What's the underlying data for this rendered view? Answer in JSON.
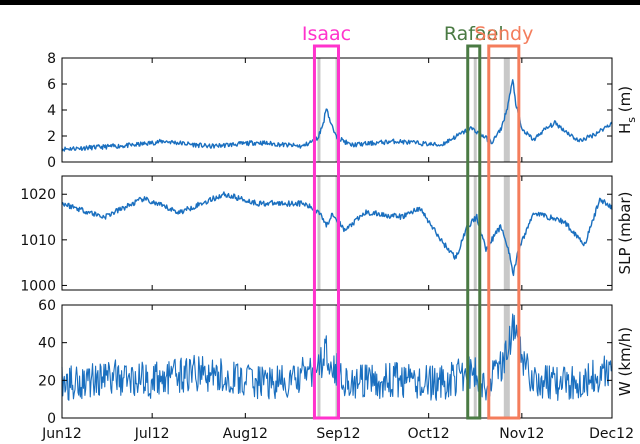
{
  "chart_data": {
    "type": "line",
    "x_axis": {
      "ticks": [
        "Jun12",
        "Jul12",
        "Aug12",
        "Sep12",
        "Oct12",
        "Nov12",
        "Dec12"
      ],
      "start": "2012-06-01",
      "end": "2012-12-01"
    },
    "panels": [
      {
        "ylabel_main": "H",
        "ylabel_sub": "s",
        "ylabel_unit": " (m)",
        "ylim": [
          0,
          8
        ],
        "yticks": [
          "0",
          "2",
          "4",
          "6",
          "8"
        ],
        "anchors": [
          [
            "2012-06-01",
            1.0
          ],
          [
            "2012-06-10",
            1.1
          ],
          [
            "2012-06-25",
            1.3
          ],
          [
            "2012-07-05",
            1.6
          ],
          [
            "2012-07-20",
            1.2
          ],
          [
            "2012-08-05",
            1.5
          ],
          [
            "2012-08-20",
            1.2
          ],
          [
            "2012-08-25",
            1.8
          ],
          [
            "2012-08-27",
            3.0
          ],
          [
            "2012-08-28",
            4.3
          ],
          [
            "2012-08-29",
            3.3
          ],
          [
            "2012-08-31",
            2.0
          ],
          [
            "2012-09-05",
            1.3
          ],
          [
            "2012-09-20",
            1.6
          ],
          [
            "2012-10-05",
            1.3
          ],
          [
            "2012-10-15",
            2.6
          ],
          [
            "2012-10-18",
            2.2
          ],
          [
            "2012-10-22",
            1.5
          ],
          [
            "2012-10-25",
            2.5
          ],
          [
            "2012-10-27",
            4.0
          ],
          [
            "2012-10-29",
            6.3
          ],
          [
            "2012-10-30",
            4.5
          ],
          [
            "2012-11-01",
            2.5
          ],
          [
            "2012-11-05",
            1.7
          ],
          [
            "2012-11-08",
            2.4
          ],
          [
            "2012-11-12",
            3.0
          ],
          [
            "2012-11-20",
            1.6
          ],
          [
            "2012-11-25",
            2.1
          ],
          [
            "2012-12-01",
            3.0
          ]
        ]
      },
      {
        "ylabel_main": "SLP (mbar)",
        "ylim": [
          999,
          1024
        ],
        "yticks": [
          "1000",
          "1010",
          "1020"
        ],
        "anchors": [
          [
            "2012-06-01",
            1018
          ],
          [
            "2012-06-15",
            1015
          ],
          [
            "2012-06-28",
            1019
          ],
          [
            "2012-07-10",
            1016
          ],
          [
            "2012-07-25",
            1020
          ],
          [
            "2012-08-05",
            1018
          ],
          [
            "2012-08-20",
            1018
          ],
          [
            "2012-08-26",
            1016
          ],
          [
            "2012-08-28",
            1013
          ],
          [
            "2012-08-30",
            1016
          ],
          [
            "2012-09-03",
            1012
          ],
          [
            "2012-09-10",
            1016
          ],
          [
            "2012-09-22",
            1015
          ],
          [
            "2012-09-28",
            1017
          ],
          [
            "2012-10-05",
            1010
          ],
          [
            "2012-10-10",
            1006
          ],
          [
            "2012-10-14",
            1013
          ],
          [
            "2012-10-17",
            1015
          ],
          [
            "2012-10-20",
            1008
          ],
          [
            "2012-10-25",
            1013
          ],
          [
            "2012-10-28",
            1007
          ],
          [
            "2012-10-29",
            1002
          ],
          [
            "2012-10-31",
            1008
          ],
          [
            "2012-11-05",
            1016
          ],
          [
            "2012-11-15",
            1014
          ],
          [
            "2012-11-22",
            1009
          ],
          [
            "2012-11-27",
            1019
          ],
          [
            "2012-12-01",
            1017
          ]
        ]
      },
      {
        "ylabel_main": "W (km/h)",
        "ylim": [
          0,
          60
        ],
        "yticks": [
          "0",
          "20",
          "40",
          "60"
        ],
        "anchors": [
          [
            "2012-06-01",
            18
          ],
          [
            "2012-06-15",
            22
          ],
          [
            "2012-07-01",
            20
          ],
          [
            "2012-07-15",
            24
          ],
          [
            "2012-08-01",
            20
          ],
          [
            "2012-08-15",
            18
          ],
          [
            "2012-08-26",
            28
          ],
          [
            "2012-08-28",
            37
          ],
          [
            "2012-08-30",
            28
          ],
          [
            "2012-09-05",
            18
          ],
          [
            "2012-09-20",
            20
          ],
          [
            "2012-10-05",
            18
          ],
          [
            "2012-10-15",
            25
          ],
          [
            "2012-10-20",
            18
          ],
          [
            "2012-10-26",
            30
          ],
          [
            "2012-10-29",
            48
          ],
          [
            "2012-10-31",
            35
          ],
          [
            "2012-11-05",
            20
          ],
          [
            "2012-11-15",
            18
          ],
          [
            "2012-11-25",
            22
          ],
          [
            "2012-12-01",
            25
          ]
        ]
      }
    ],
    "storms": [
      {
        "name": "Isaac",
        "start": "2012-08-24",
        "end": "2012-09-01",
        "color": "#ff33cc"
      },
      {
        "name": "Rafael",
        "start": "2012-10-14",
        "end": "2012-10-18",
        "color": "#4a7a43"
      },
      {
        "name": "Sandy",
        "start": "2012-10-21",
        "end": "2012-10-31",
        "color": "#f47d5c"
      }
    ],
    "gray_bands": [
      [
        "2012-08-25",
        "2012-08-26"
      ],
      [
        "2012-08-31",
        "2012-09-01"
      ],
      [
        "2012-10-16",
        "2012-10-17"
      ],
      [
        "2012-10-26",
        "2012-10-28"
      ]
    ],
    "line_color": "#1a6fbf",
    "band_color": "#c8c8c8",
    "grid": false
  }
}
